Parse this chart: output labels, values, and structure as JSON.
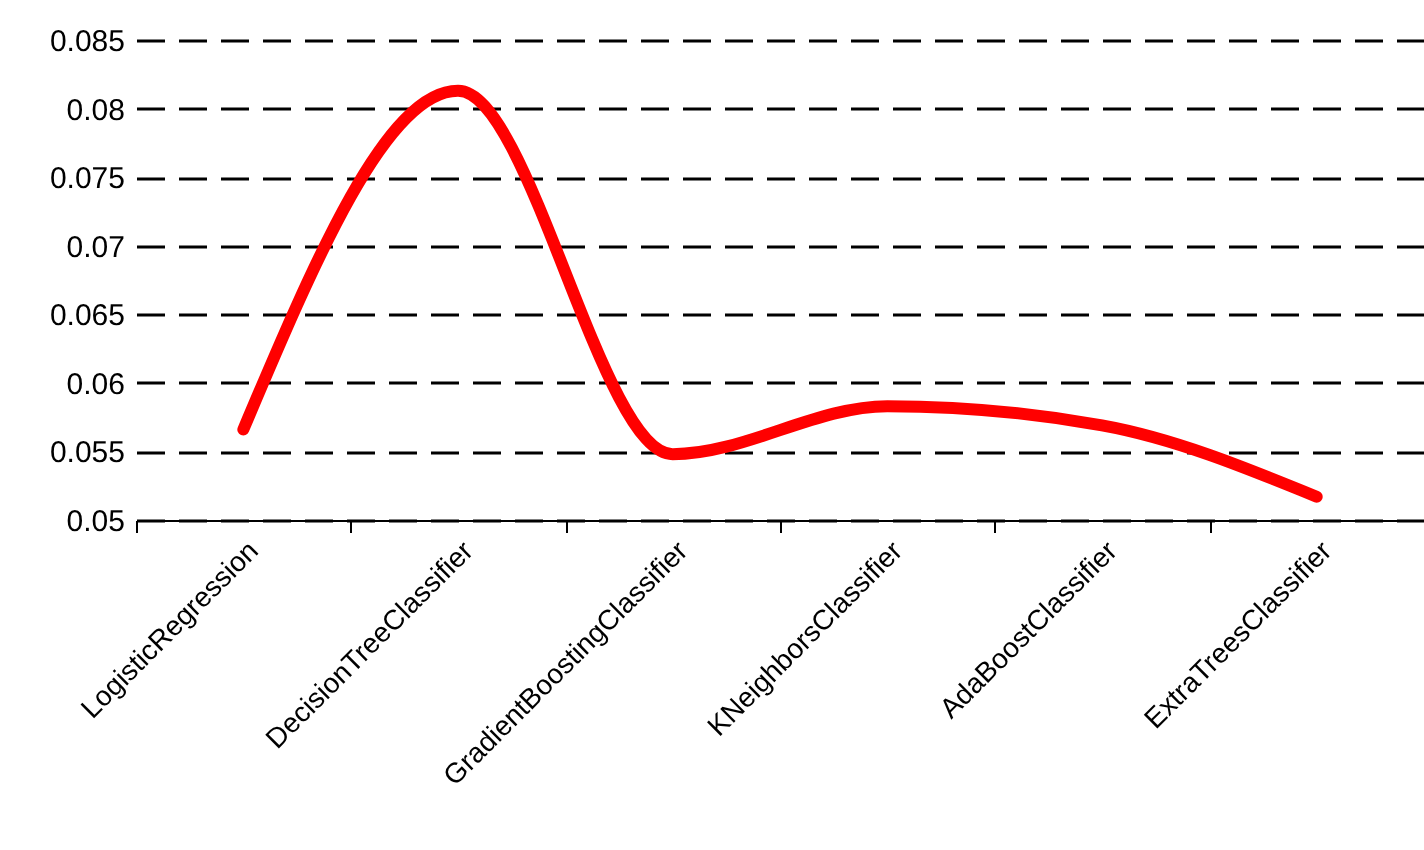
{
  "chart_data": {
    "type": "line",
    "categories": [
      "LogisticRegression",
      "DecisionTreeClassifier",
      "GradientBoostingClassifier",
      "KNeighborsClassifier",
      "AdaBoostClassifier",
      "ExtraTreesClassifier"
    ],
    "series": [
      {
        "color": "#ff0000",
        "values": [
          0.0566,
          0.0813,
          0.0548,
          0.0583,
          0.0569,
          0.0517
        ]
      }
    ],
    "ylim": [
      0.05,
      0.085
    ],
    "yticks": [
      0.05,
      0.055,
      0.06,
      0.065,
      0.07,
      0.075,
      0.08,
      0.085
    ],
    "grid": "y",
    "line_style": "solid",
    "marker": "none",
    "legend": false
  }
}
